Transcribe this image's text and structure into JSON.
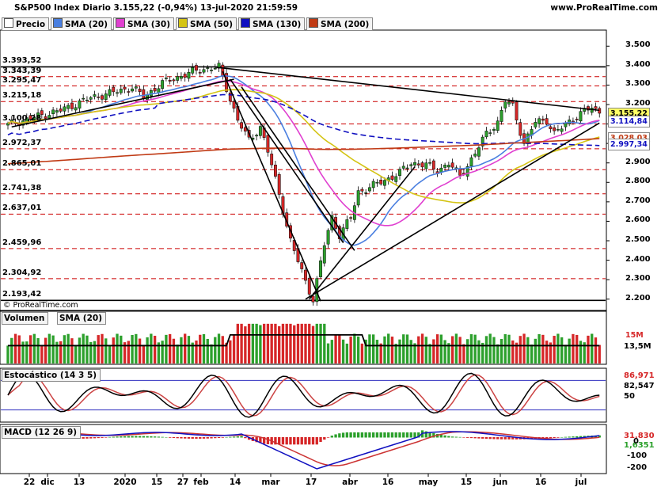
{
  "header": {
    "title": "S&P500 Index Diario 3.155,22 (-0,94%) 13-jul-2020 21:59:59",
    "brand": "www.ProRealTime.com",
    "copyright": "© ProRealTime.com"
  },
  "legend": [
    {
      "label": "Precio",
      "color": "#ffffff"
    },
    {
      "label": "SMA (20)",
      "color": "#4a7fe0"
    },
    {
      "label": "SMA (30)",
      "color": "#e040d0"
    },
    {
      "label": "SMA (50)",
      "color": "#d4c414"
    },
    {
      "label": "SMA (130)",
      "color": "#1010c0"
    },
    {
      "label": "SMA (200)",
      "color": "#c03a14"
    }
  ],
  "colors": {
    "up": "#2ca02c",
    "down": "#d62728",
    "sma20": "#4a7fe0",
    "sma30": "#e040d0",
    "sma50": "#d4c414",
    "sma130": "#1010c0",
    "sma200": "#c03a14",
    "hline": "#cc0000",
    "vol_sma": "#000000",
    "stoch_k": "#000000",
    "stoch_d": "#cc4444",
    "macd": "#1010c0",
    "signal": "#cc3333"
  },
  "chart_data": {
    "type": "candlestick",
    "x_labels": [
      "22",
      "dic",
      "13",
      "2020",
      "15",
      "27",
      "feb",
      "14",
      "mar",
      "17",
      "abr",
      "16",
      "may",
      "15",
      "jun",
      "16",
      "jul"
    ],
    "y_ticks": [
      "3.500",
      "3.400",
      "3.300",
      "3.200",
      "3.100",
      "3.000",
      "2.900",
      "2.800",
      "2.700",
      "2.600",
      "2.500",
      "2.400",
      "2.300",
      "2.200"
    ],
    "ylim": [
      2150,
      3550
    ],
    "horizontal_levels": [
      "3.393,52",
      "3.343,39",
      "3.295,47",
      "3.215,18",
      "3.100,28",
      "2.972,37",
      "2.865,01",
      "2.741,38",
      "2.637,01",
      "2.459,96",
      "2.304,92",
      "2.193,42"
    ],
    "price_tags": [
      {
        "text": "3.155,22",
        "value": 3155.22,
        "bg": "#ffff66"
      },
      {
        "text": "3.114,84",
        "value": 3114.84,
        "bg": "#ffffff",
        "fg": "#1010c0"
      },
      {
        "text": "3.028,03",
        "value": 3028.03,
        "bg": "#ffffff",
        "fg": "#c03a14"
      },
      {
        "text": "2.997,34",
        "value": 2997.34,
        "bg": "#ffffff",
        "fg": "#1010c0"
      }
    ],
    "last_close": 3155.22,
    "change_pct": -0.94,
    "anchor_closes": [
      [
        0,
        3095
      ],
      [
        8,
        3140
      ],
      [
        14,
        3170
      ],
      [
        22,
        3235
      ],
      [
        27,
        3258
      ],
      [
        33,
        3288
      ],
      [
        36,
        3238
      ],
      [
        41,
        3310
      ],
      [
        46,
        3348
      ],
      [
        51,
        3380
      ],
      [
        56,
        3392
      ],
      [
        61,
        3120
      ],
      [
        64,
        3015
      ],
      [
        67,
        3085
      ],
      [
        69,
        2960
      ],
      [
        72,
        2740
      ],
      [
        75,
        2500
      ],
      [
        79,
        2290
      ],
      [
        81,
        2200
      ],
      [
        84,
        2480
      ],
      [
        86,
        2620
      ],
      [
        88,
        2530
      ],
      [
        91,
        2620
      ],
      [
        93,
        2750
      ],
      [
        100,
        2810
      ],
      [
        104,
        2850
      ],
      [
        107,
        2900
      ],
      [
        111,
        2890
      ],
      [
        114,
        2860
      ],
      [
        117,
        2900
      ],
      [
        120,
        2830
      ],
      [
        124,
        2950
      ],
      [
        127,
        3050
      ],
      [
        130,
        3110
      ],
      [
        132,
        3220
      ],
      [
        134,
        3190
      ],
      [
        137,
        3000
      ],
      [
        140,
        3110
      ],
      [
        143,
        3120
      ],
      [
        145,
        3050
      ],
      [
        147,
        3080
      ],
      [
        150,
        3130
      ],
      [
        153,
        3165
      ],
      [
        155,
        3185
      ],
      [
        157,
        3155
      ]
    ],
    "volume": {
      "axis_labels": [
        "15M",
        "13,5M"
      ]
    },
    "stochastic": {
      "title": "Estocástico (14 3 5)",
      "values_shown": [
        "86,971",
        "82,547"
      ],
      "levels": [
        "50"
      ]
    },
    "macd": {
      "title": "MACD (12 26 9)",
      "axis_labels": [
        "0",
        "-100",
        "-200"
      ],
      "values_shown": [
        "31,830",
        "1,6351"
      ]
    }
  },
  "subpanels": {
    "volume_legend": [
      "Volumen",
      "SMA (20)"
    ]
  }
}
